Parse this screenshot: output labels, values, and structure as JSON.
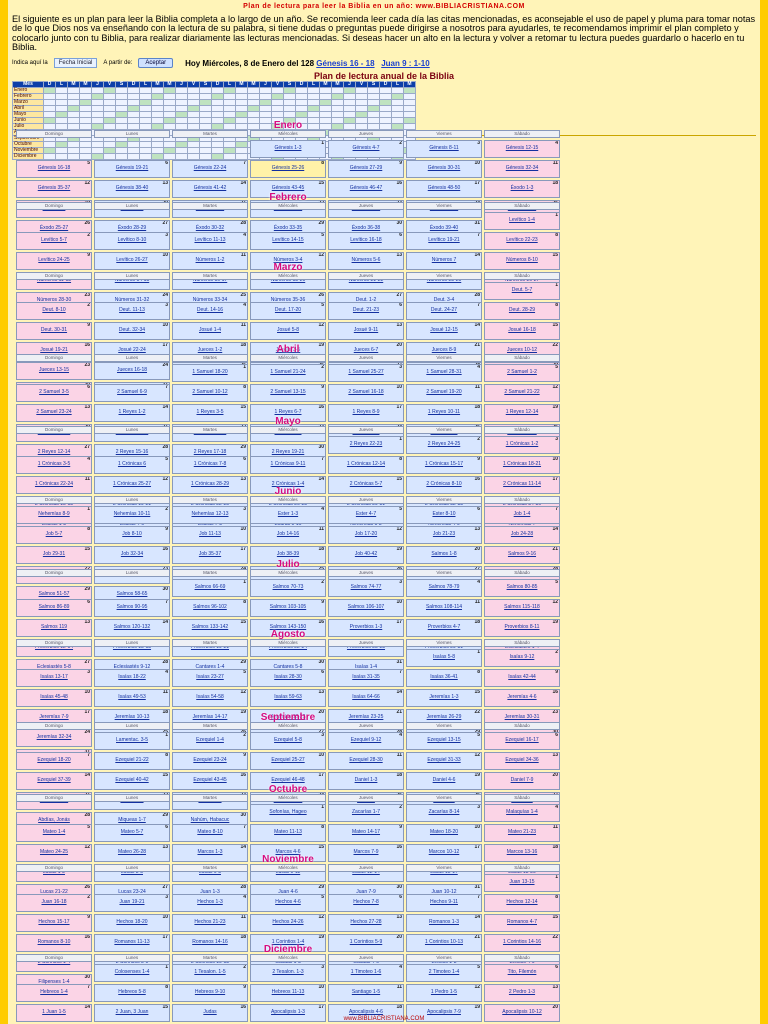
{
  "header": {
    "title": "Plan de lectura para leer la Biblia en un año: www.BIBLIACRISTIANA.COM"
  },
  "intro": "El siguiente es un plan para leer la Biblia completa a lo largo de un año. Se recomienda leer cada día las citas mencionadas, es aconsejable el uso de papel y pluma para tomar notas de lo que Dios nos va enseñando con la lectura de su palabra, si tiene dudas o preguntas puede dirigirse a nosotros para ayudarles, te recomendamos imprimir el plan completo y colocarlo junto con tu Biblia, para realizar diariamente las lecturas mencionadas. Si deseas hacer un alto en la lectura y volver a retomar tu lectura puedes guardarlo o hacerlo en tu Biblia.",
  "controls": {
    "start_label": "Indica aquí la",
    "start_value": "Fecha Inicial",
    "from_label": "A partir de:",
    "button_label": "Aceptar",
    "today_label": "Hoy Miércoles, 8 de Enero del 128",
    "today_link1": "Génesis 16 - 18",
    "today_link2": "Juan 9 : 1-10"
  },
  "plan": {
    "title": "Plan de lectura anual de la Biblia",
    "col_header": "Mes",
    "months": [
      "Enero",
      "Febrero",
      "Marzo",
      "Abril",
      "Mayo",
      "Junio",
      "Julio",
      "Agosto",
      "Septiembre",
      "Octubre",
      "Noviembre",
      "Diciembre"
    ]
  },
  "weekdays": [
    "Domingo",
    "Lunes",
    "Martes",
    "Miércoles",
    "Jueves",
    "Viernes",
    "Sábado"
  ],
  "months": [
    {
      "name": "Enero",
      "start": 3,
      "days": 31,
      "cells": [
        "Génesis 1-3",
        "Génesis 4-7",
        "Génesis 8-11",
        "Génesis 12-15",
        "Génesis 16-18",
        "Génesis 19-21",
        "Génesis 22-24",
        "Génesis 25-26",
        "Génesis 27-29",
        "Génesis 30-31",
        "Génesis 32-34",
        "Génesis 35-37",
        "Génesis 38-40",
        "Génesis 41-42",
        "Génesis 43-45",
        "Génesis 46-47",
        "Génesis 48-50",
        "Éxodo 1-3",
        "Éxodo 4-6",
        "Éxodo 7-9",
        "Éxodo 10-12",
        "Éxodo 13-15",
        "Éxodo 16-18",
        "Éxodo 19-21",
        "Éxodo 22-24",
        "Éxodo 25-27",
        "Éxodo 28-29",
        "Éxodo 30-32",
        "Éxodo 33-35",
        "Éxodo 36-38",
        "Éxodo 39-40"
      ]
    },
    {
      "name": "Febrero",
      "start": 6,
      "days": 28,
      "cells": [
        "Levítico 1-4",
        "Levítico 5-7",
        "Levítico 8-10",
        "Levítico 11-13",
        "Levítico 14-15",
        "Levítico 16-18",
        "Levítico 19-21",
        "Levítico 22-23",
        "Levítico 24-25",
        "Levítico 26-27",
        "Números 1-2",
        "Números 3-4",
        "Números 5-6",
        "Números 7",
        "Números 8-10",
        "Números 11-13",
        "Números 14-15",
        "Números 16-17",
        "Números 18-20",
        "Números 21-22",
        "Números 23-25",
        "Números 26-27",
        "Números 28-30",
        "Números 31-32",
        "Números 33-34",
        "Números 35-36",
        "Deut. 1-2",
        "Deut. 3-4"
      ]
    },
    {
      "name": "Marzo",
      "start": 6,
      "days": 31,
      "cells": [
        "Deut. 5-7",
        "Deut. 8-10",
        "Deut. 11-13",
        "Deut. 14-16",
        "Deut. 17-20",
        "Deut. 21-23",
        "Deut. 24-27",
        "Deut. 28-29",
        "Deut. 30-31",
        "Deut. 32-34",
        "Josué 1-4",
        "Josué 5-8",
        "Josué 9-11",
        "Josué 12-15",
        "Josué 16-18",
        "Josué 19-21",
        "Josué 22-24",
        "Jueces 1-2",
        "Jueces 3-5",
        "Jueces 6-7",
        "Jueces 8-9",
        "Jueces 10-12",
        "Jueces 13-15",
        "Jueces 16-18",
        "Jueces 19-21",
        "Rut 1-4",
        "1 Samuel 1-3",
        "1 Samuel 4-8",
        "1 Samuel 9-12",
        "1 Samuel 13-14",
        "1 Samuel 15-17"
      ]
    },
    {
      "name": "Abril",
      "start": 2,
      "days": 30,
      "cells": [
        "1 Samuel 18-20",
        "1 Samuel 21-24",
        "1 Samuel 25-27",
        "1 Samuel 28-31",
        "2 Samuel 1-2",
        "2 Samuel 3-5",
        "2 Samuel 6-9",
        "2 Samuel 10-12",
        "2 Samuel 13-15",
        "2 Samuel 16-18",
        "2 Samuel 19-20",
        "2 Samuel 21-22",
        "2 Samuel 23-24",
        "1 Reyes 1-2",
        "1 Reyes 3-5",
        "1 Reyes 6-7",
        "1 Reyes 8-9",
        "1 Reyes 10-11",
        "1 Reyes 12-14",
        "1 Reyes 15-17",
        "1 Reyes 18-20",
        "1 Reyes 21-22",
        "2 Reyes 1-3",
        "2 Reyes 4-5",
        "2 Reyes 6-8",
        "2 Reyes 9-11",
        "2 Reyes 12-14",
        "2 Reyes 15-16",
        "2 Reyes 17-18",
        "2 Reyes 19-21"
      ]
    },
    {
      "name": "Mayo",
      "start": 4,
      "days": 31,
      "cells": [
        "2 Reyes 22-23",
        "2 Reyes 24-25",
        "1 Crónicas 1-2",
        "1 Crónicas 3-5",
        "1 Crónicas 6",
        "1 Crónicas 7-8",
        "1 Crónicas 9-11",
        "1 Crónicas 12-14",
        "1 Crónicas 15-17",
        "1 Crónicas 18-21",
        "1 Crónicas 22-24",
        "1 Crónicas 25-27",
        "1 Crónicas 28-29",
        "2 Crónicas 1-4",
        "2 Crónicas 5-7",
        "2 Crónicas 8-10",
        "2 Crónicas 11-14",
        "2 Crónicas 15-18",
        "2 Crónicas 19-21",
        "2 Crónicas 22-25",
        "2 Crónicas 26-28",
        "2 Crónicas 29-31",
        "2 Crónicas 32-33",
        "2 Crónicas 34-36",
        "Esdras 1-3",
        "Esdras 4-6",
        "Esdras 7-8",
        "Esdras 9-10",
        "Nehemías 1-3",
        "Nehemías 4-6",
        "Nehemías 7"
      ]
    },
    {
      "name": "Junio",
      "start": 0,
      "days": 30,
      "cells": [
        "Nehemías 8-9",
        "Nehemías 10-11",
        "Nehemías 12-13",
        "Ester 1-3",
        "Ester 4-7",
        "Ester 8-10",
        "Job 1-4",
        "Job 5-7",
        "Job 8-10",
        "Job 11-13",
        "Job 14-16",
        "Job 17-20",
        "Job 21-23",
        "Job 24-28",
        "Job 29-31",
        "Job 32-34",
        "Job 35-37",
        "Job 38-39",
        "Job 40-42",
        "Salmos 1-8",
        "Salmos 9-16",
        "Salmos 17-20",
        "Salmos 21-25",
        "Salmos 26-31",
        "Salmos 32-35",
        "Salmos 36-39",
        "Salmos 40-45",
        "Salmos 46-50",
        "Salmos 51-57",
        "Salmos 58-65"
      ]
    },
    {
      "name": "Julio",
      "start": 2,
      "days": 31,
      "cells": [
        "Salmos 66-69",
        "Salmos 70-73",
        "Salmos 74-77",
        "Salmos 78-79",
        "Salmos 80-85",
        "Salmos 86-89",
        "Salmos 90-95",
        "Salmos 96-102",
        "Salmos 103-105",
        "Salmos 106-107",
        "Salmos 108-114",
        "Salmos 115-118",
        "Salmos 119",
        "Salmos 120-132",
        "Salmos 133-142",
        "Salmos 143-150",
        "Proverbios 1-3",
        "Proverbios 4-7",
        "Proverbios 8-11",
        "Proverbios 12-14",
        "Proverbios 15-18",
        "Proverbios 19-21",
        "Proverbios 22-24",
        "Proverbios 25-28",
        "Proverbios 29-31",
        "Eclesiastés 1-4",
        "Eclesiastés 5-8",
        "Eclesiastés 9-12",
        "Cantares 1-4",
        "Cantares 5-8",
        "Isaías 1-4"
      ]
    },
    {
      "name": "Agosto",
      "start": 5,
      "days": 31,
      "cells": [
        "Isaías 5-8",
        "Isaías 9-12",
        "Isaías 13-17",
        "Isaías 18-22",
        "Isaías 23-27",
        "Isaías 28-30",
        "Isaías 31-35",
        "Isaías 36-41",
        "Isaías 42-44",
        "Isaías 45-48",
        "Isaías 49-53",
        "Isaías 54-58",
        "Isaías 59-63",
        "Isaías 64-66",
        "Jeremías 1-3",
        "Jeremías 4-6",
        "Jeremías 7-9",
        "Jeremías 10-13",
        "Jeremías 14-17",
        "Jeremías 18-22",
        "Jeremías 23-25",
        "Jeremías 26-29",
        "Jeremías 30-31",
        "Jeremías 32-34",
        "Jeremías 35-37",
        "Jeremías 38-40",
        "Jeremías 41-45",
        "Jeremías 46-48",
        "Jeremías 49-50",
        "Jeremías 51-52",
        "Lamentaciones 1-2"
      ]
    },
    {
      "name": "Septiembre",
      "start": 1,
      "days": 30,
      "cells": [
        "Lamentac. 3-5",
        "Ezequiel 1-4",
        "Ezequiel 5-8",
        "Ezequiel 9-12",
        "Ezequiel 13-15",
        "Ezequiel 16-17",
        "Ezequiel 18-20",
        "Ezequiel 21-22",
        "Ezequiel 23-24",
        "Ezequiel 25-27",
        "Ezequiel 28-30",
        "Ezequiel 31-33",
        "Ezequiel 34-36",
        "Ezequiel 37-39",
        "Ezequiel 40-42",
        "Ezequiel 43-45",
        "Ezequiel 46-48",
        "Daniel 1-3",
        "Daniel 4-6",
        "Daniel 7-9",
        "Daniel 10-12",
        "Oseas 1-4",
        "Oseas 5-9",
        "Oseas 10-14",
        "Joel 1-3",
        "Amós 1-5",
        "Amós 6-9",
        "Abdías, Jonás",
        "Miqueas 1-7",
        "Nahúm, Habacuc"
      ]
    },
    {
      "name": "Octubre",
      "start": 3,
      "days": 31,
      "cells": [
        "Sofonías, Hageo",
        "Zacarías 1-7",
        "Zacarías 8-14",
        "Malaquías 1-4",
        "Mateo 1-4",
        "Mateo 5-7",
        "Mateo 8-10",
        "Mateo 11-13",
        "Mateo 14-17",
        "Mateo 18-20",
        "Mateo 21-23",
        "Mateo 24-25",
        "Mateo 26-28",
        "Marcos 1-3",
        "Marcos 4-6",
        "Marcos 7-9",
        "Marcos 10-12",
        "Marcos 13-16",
        "Lucas 1-2",
        "Lucas 3-5",
        "Lucas 6-8",
        "Lucas 9-11",
        "Lucas 12-14",
        "Lucas 15-17",
        "Lucas 18-20",
        "Lucas 21-22",
        "Lucas 23-24",
        "Juan 1-3",
        "Juan 4-6",
        "Juan 7-9",
        "Juan 10-12"
      ]
    },
    {
      "name": "Noviembre",
      "start": 6,
      "days": 30,
      "cells": [
        "Juan 13-15",
        "Juan 16-18",
        "Juan 19-21",
        "Hechos 1-3",
        "Hechos 4-6",
        "Hechos 7-8",
        "Hechos 9-11",
        "Hechos 12-14",
        "Hechos 15-17",
        "Hechos 18-20",
        "Hechos 21-23",
        "Hechos 24-26",
        "Hechos 27-28",
        "Romanos 1-3",
        "Romanos 4-7",
        "Romanos 8-10",
        "Romanos 11-13",
        "Romanos 14-16",
        "1 Corintios 1-4",
        "1 Corintios 5-9",
        "1 Corintios 10-13",
        "1 Corintios 14-16",
        "2 Corintios 1-4",
        "2 Corintios 5-9",
        "2 Corintios 10-13",
        "Gálatas 1-3",
        "Gálatas 4-6",
        "Efesios 1-3",
        "Efesios 4-6",
        "Filipenses 1-4"
      ]
    },
    {
      "name": "Diciembre",
      "start": 1,
      "days": 31,
      "cells": [
        "Colosenses 1-4",
        "1 Tesalon. 1-5",
        "2 Tesalon. 1-3",
        "1 Timoteo 1-6",
        "2 Timoteo 1-4",
        "Tito, Filemón",
        "Hebreos 1-4",
        "Hebreos 5-8",
        "Hebreos 9-10",
        "Hebreos 11-13",
        "Santiago 1-5",
        "1 Pedro 1-5",
        "2 Pedro 1-3",
        "1 Juan 1-5",
        "2 Juan, 3 Juan",
        "Judas",
        "Apocalipsis 1-3",
        "Apocalipsis 4-6",
        "Apocalipsis 7-9",
        "Apocalipsis 10-12",
        "Apocalipsis 13-15",
        "Apocalipsis 16-18",
        "Apocalipsis 19-22",
        "Mateo 1-2",
        "Lucas 1",
        "Lucas 2",
        "Juan 1",
        "Salmos 23",
        "Salmos 91",
        "Salmos 121",
        "Salmos 150"
      ]
    }
  ],
  "footer": "www.BIBLIACRISTIANA.COM",
  "colors": {
    "accent": "#d60c80",
    "link": "#1330a0",
    "sunday": "#fbd4e6",
    "weekday": "#d8e6ff",
    "today": "#fff2a8"
  }
}
